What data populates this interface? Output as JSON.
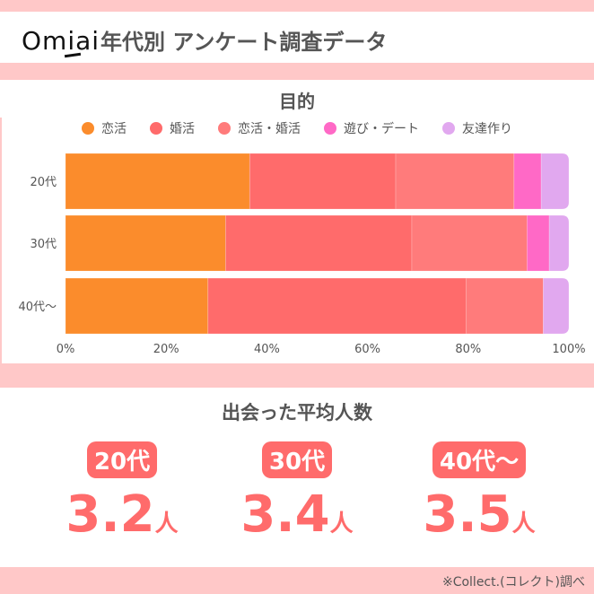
{
  "header": {
    "logo": "Omiai",
    "title": "年代別 アンケート調査データ"
  },
  "chart_data": {
    "type": "bar",
    "orientation": "horizontal",
    "stacked": true,
    "title": "目的",
    "categories": [
      "20代",
      "30代",
      "40代〜"
    ],
    "series": [
      {
        "name": "恋活",
        "color": "#fb8c2c",
        "values": [
          36.6,
          31.8,
          28.3
        ]
      },
      {
        "name": "婚活",
        "color": "#ff6b6b",
        "values": [
          29.0,
          37.0,
          51.3
        ]
      },
      {
        "name": "恋活・婚活",
        "color": "#ff7b7b",
        "values": [
          23.5,
          22.9,
          15.3
        ]
      },
      {
        "name": "遊び・デート",
        "color": "#ff69c6",
        "values": [
          5.4,
          4.4,
          0
        ]
      },
      {
        "name": "友達作り",
        "color": "#e1a8ef",
        "values": [
          5.5,
          3.9,
          5.1
        ]
      }
    ],
    "xlim": [
      0,
      100
    ],
    "xticks": [
      "0%",
      "20%",
      "40%",
      "60%",
      "80%",
      "100%"
    ],
    "legend": "top",
    "grid": false
  },
  "average": {
    "title": "出会った平均人数",
    "items": [
      {
        "age": "20代",
        "value": "3.2",
        "unit": "人"
      },
      {
        "age": "30代",
        "value": "3.4",
        "unit": "人"
      },
      {
        "age": "40代〜",
        "value": "3.5",
        "unit": "人"
      }
    ]
  },
  "footer": "※Collect.(コレクト)調べ"
}
